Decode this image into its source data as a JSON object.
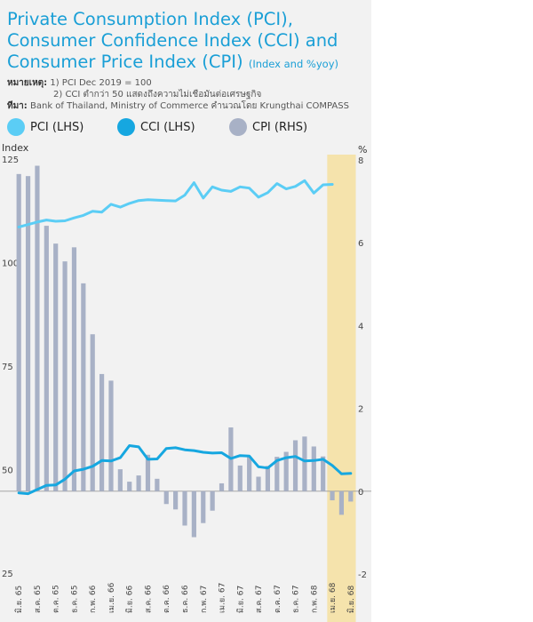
{
  "title_lines": [
    "Private Consumption Index (PCI),",
    "Consumer Confidence Index (CCI) and",
    "Consumer Price Index (CPI)"
  ],
  "title_suffix": "(Index and %yoy)",
  "notes": {
    "label": "หมายเหตุ:",
    "line1": "1) PCI Dec 2019 = 100",
    "line2": "2) CCI  ต่ำกว่า 50 แสดงถึงความไม่เชื่อมั่นต่อเศรษฐกิจ",
    "source_label": "ที่มา:",
    "source": "Bank of Thailand, Ministry of Commerce คำนวณโดย Krungthai COMPASS"
  },
  "colors": {
    "pci": "#5bcdf5",
    "cci": "#16a7e0",
    "cpi": "#a8b1c6",
    "highlight": "#f5e3ac",
    "panel": "#f2f2f2"
  },
  "chart_data": {
    "type": "bar+line",
    "months": [
      "มิ.ย. 65",
      "ก.ค. 65",
      "ส.ค. 65",
      "ก.ย. 65",
      "ต.ค. 65",
      "พ.ย. 65",
      "ธ.ค. 65",
      "ม.ค. 66",
      "ก.พ. 66",
      "มี.ค. 66",
      "เม.ย. 66",
      "พ.ค. 66",
      "มิ.ย. 66",
      "ก.ค. 66",
      "ส.ค. 66",
      "ก.ย. 66",
      "ต.ค. 66",
      "พ.ย. 66",
      "ธ.ค. 66",
      "ม.ค. 67",
      "ก.พ. 67",
      "มี.ค. 67",
      "เม.ย. 67",
      "พ.ค. 67",
      "มิ.ย. 67",
      "ก.ค. 67",
      "ส.ค. 67",
      "ก.ย. 67",
      "ต.ค. 67",
      "พ.ย. 67",
      "ธ.ค. 67",
      "ม.ค. 68",
      "ก.พ. 68",
      "มี.ค. 68",
      "เม.ย. 68",
      "พ.ค. 68",
      "มิ.ย. 68"
    ],
    "x_tick_labels": [
      "มิ.ย. 65",
      "ส.ค. 65",
      "ต.ค. 65",
      "ธ.ค. 65",
      "ก.พ. 66",
      "เม.ย. 66",
      "มิ.ย. 66",
      "ส.ค. 66",
      "ต.ค. 66",
      "ธ.ค. 66",
      "ก.พ. 67",
      "เม.ย. 67",
      "มิ.ย. 67",
      "ส.ค. 67",
      "ต.ค. 67",
      "ธ.ค. 67",
      "ก.พ. 68",
      "เม.ย. 68",
      "มิ.ย. 68"
    ],
    "series": [
      {
        "name": "PCI (LHS)",
        "type": "line",
        "axis": "left",
        "values": [
          108.8,
          109.4,
          110.0,
          110.5,
          110.2,
          110.3,
          111.0,
          111.6,
          112.6,
          112.4,
          114.3,
          113.6,
          114.5,
          115.2,
          115.4,
          115.3,
          115.2,
          115.1,
          116.5,
          119.5,
          115.8,
          118.5,
          117.7,
          117.4,
          118.5,
          118.2,
          116.0,
          117.1,
          119.3,
          118.0,
          118.6,
          120.0,
          117.0,
          119.0,
          119.1,
          null,
          null
        ]
      },
      {
        "name": "CCI (LHS)",
        "type": "line",
        "axis": "left",
        "values": [
          44.6,
          44.4,
          45.4,
          46.4,
          46.5,
          47.9,
          49.9,
          50.3,
          51.0,
          52.4,
          52.3,
          53.1,
          56.0,
          55.7,
          52.7,
          52.8,
          55.3,
          55.5,
          55.0,
          54.8,
          54.4,
          54.2,
          54.3,
          52.9,
          53.6,
          53.5,
          50.9,
          50.6,
          52.4,
          53.1,
          53.4,
          52.3,
          52.4,
          52.7,
          51.2,
          49.2,
          49.3
        ]
      },
      {
        "name": "CPI (RHS)",
        "type": "bar",
        "axis": "right",
        "values": [
          7.66,
          7.61,
          7.86,
          6.41,
          5.98,
          5.55,
          5.89,
          5.02,
          3.79,
          2.83,
          2.67,
          0.53,
          0.23,
          0.38,
          0.88,
          0.3,
          -0.31,
          -0.44,
          -0.83,
          -1.11,
          -0.77,
          -0.47,
          0.19,
          1.54,
          0.62,
          0.83,
          0.35,
          0.61,
          0.83,
          0.95,
          1.23,
          1.32,
          1.08,
          0.84,
          -0.22,
          -0.57,
          -0.25
        ]
      }
    ],
    "left_axis": {
      "label": "Index",
      "ticks": [
        25,
        50,
        75,
        100,
        125
      ],
      "range": [
        25,
        125
      ]
    },
    "right_axis": {
      "label": "%",
      "ticks": [
        -2,
        0,
        2,
        4,
        6,
        8
      ],
      "range": [
        -2,
        8
      ]
    },
    "highlight_range": [
      "เม.ย. 68",
      "มิ.ย. 68"
    ]
  }
}
